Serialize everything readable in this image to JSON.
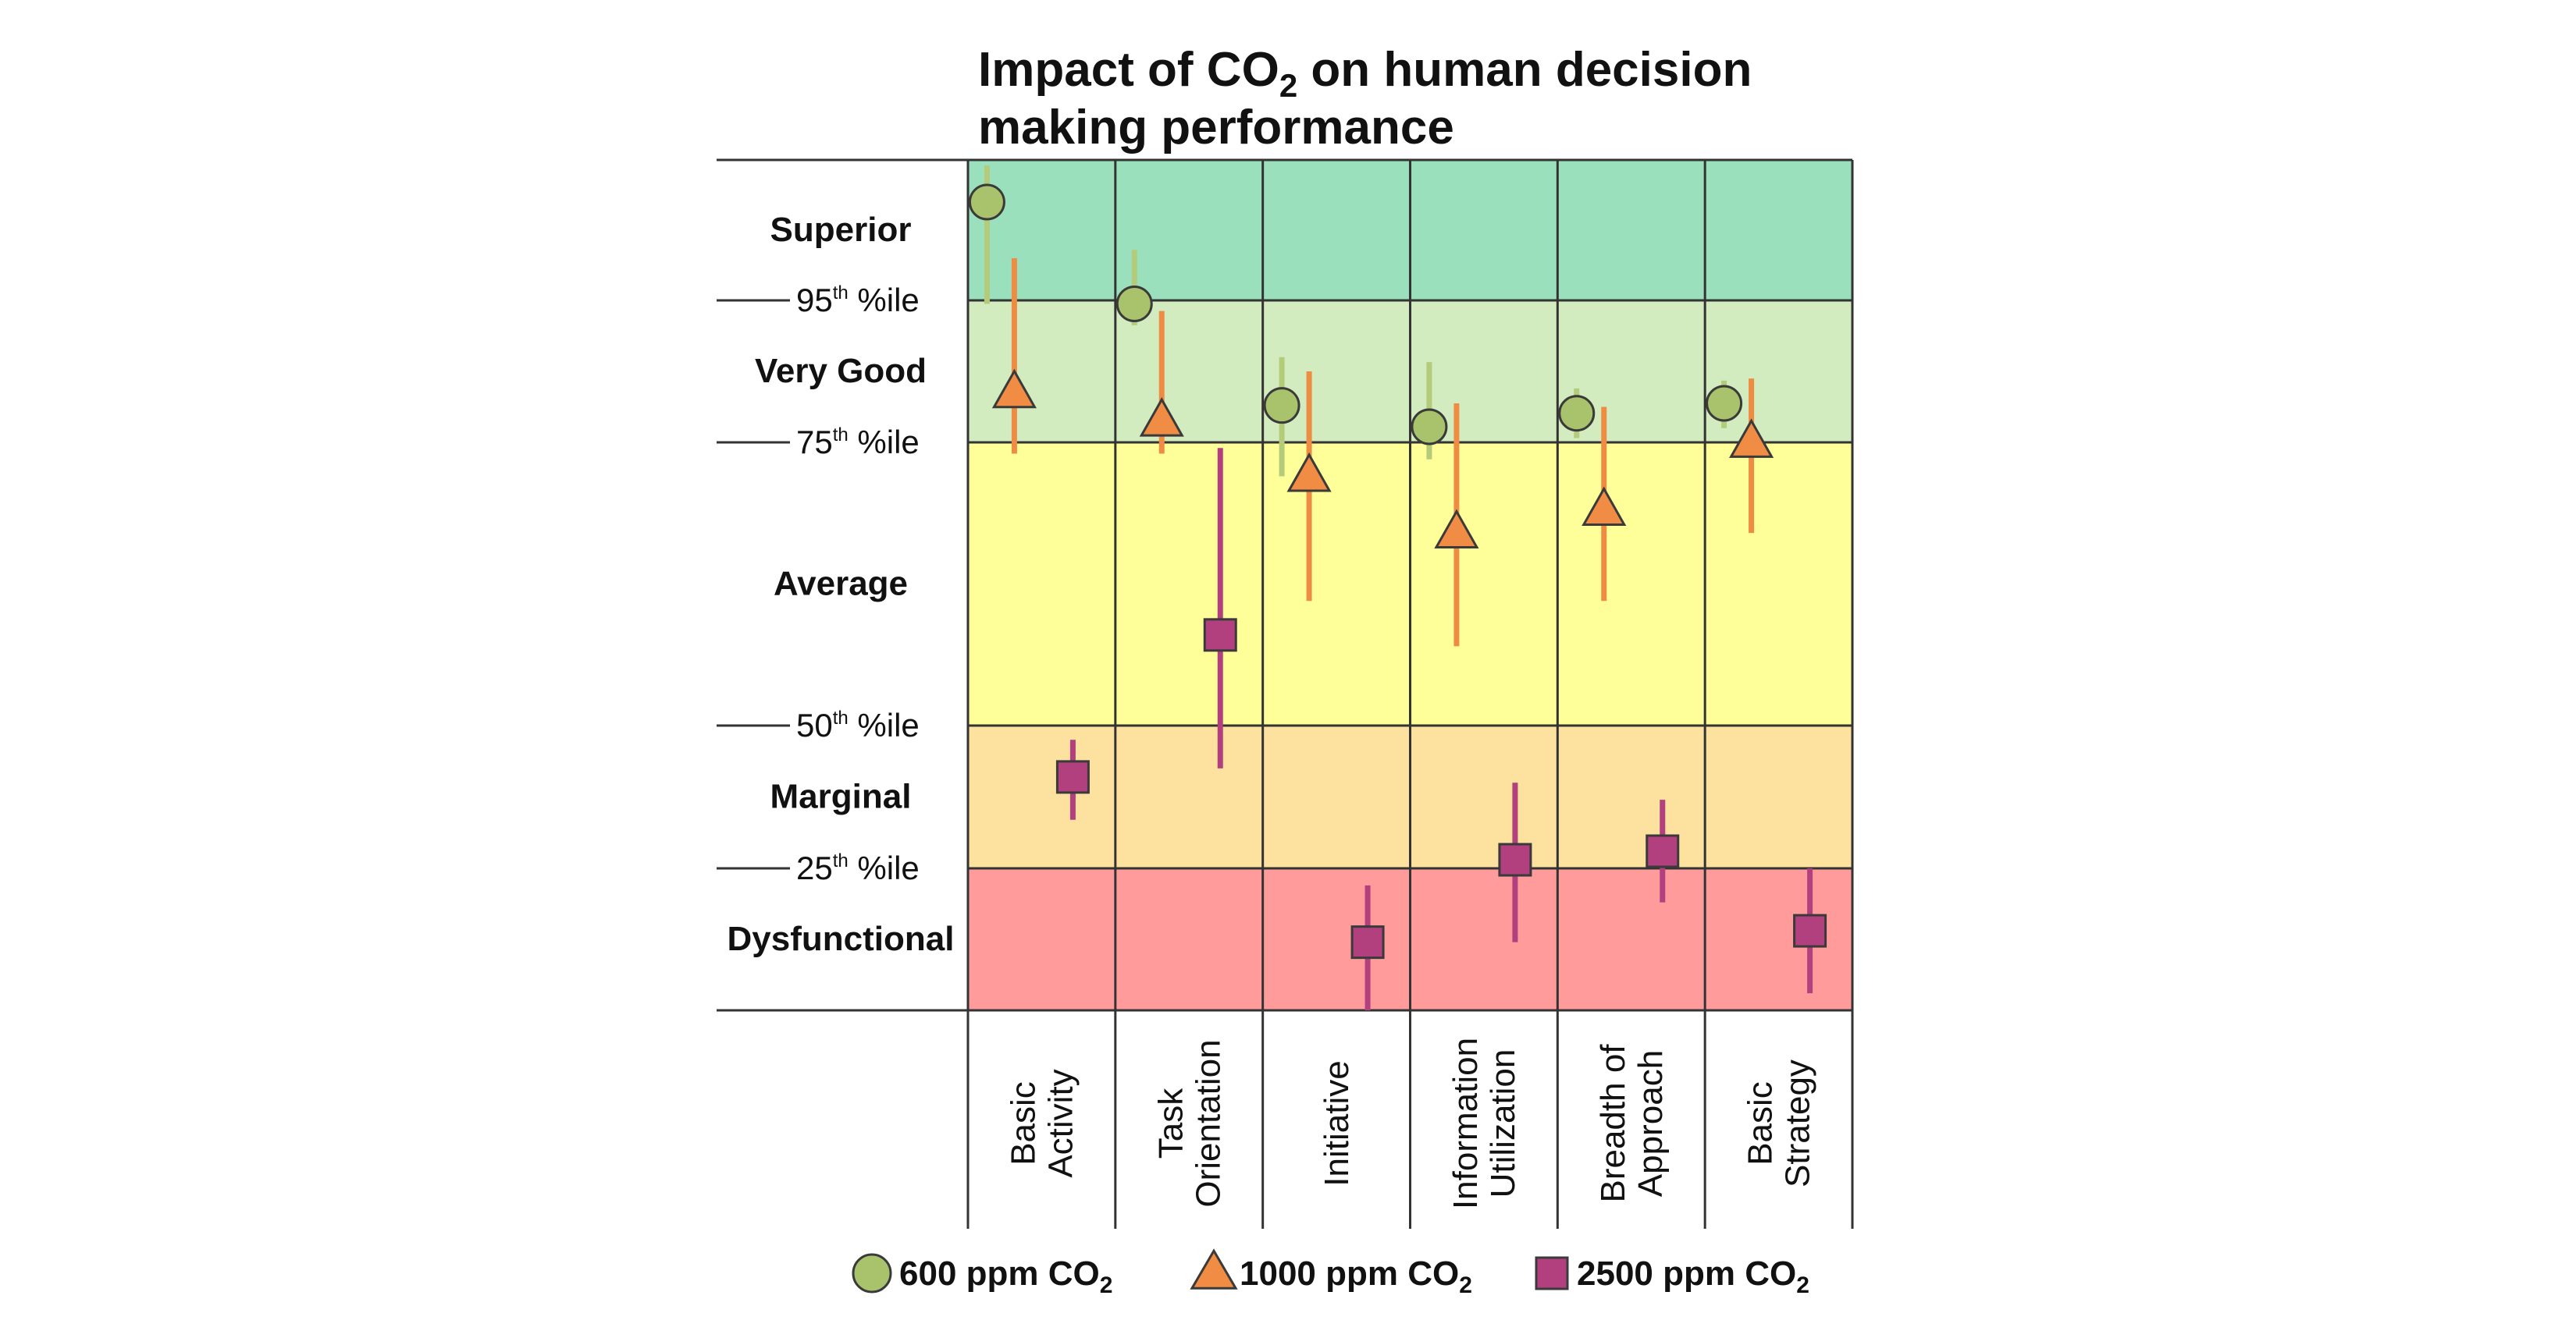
{
  "colors": {
    "superior": "#9be0bc",
    "very_good": "#d3ecbf",
    "average": "#ffff99",
    "marginal": "#fde29f",
    "dysfunctional": "#ff9b9b",
    "s600_marker": "#a8c36b",
    "s600_bar": "#b3cb7a",
    "s1000_marker": "#f08c43",
    "s1000_bar": "#ef8c44",
    "s2500_marker": "#b2407f",
    "s2500_bar": "#b2407f",
    "grid": "#333333"
  },
  "chart_data": {
    "type": "scatter",
    "title": {
      "main_1": "Impact of CO",
      "sub": "2",
      "main_2": " on human decision",
      "line2": "making performance"
    },
    "ylabel": "",
    "xlabel": "",
    "ylim": [
      0,
      100
    ],
    "y_axis": "percentile, piecewise: 0–25 Dysfunctional, 25–50 Marginal, 50–75 Average, 75–95 Very Good, 95–100 Superior",
    "grid": true,
    "legend_position": "bottom",
    "bands": [
      {
        "name": "Superior",
        "from": 95,
        "to": 100,
        "color_key": "superior"
      },
      {
        "name": "Very Good",
        "from": 75,
        "to": 95,
        "color_key": "very_good"
      },
      {
        "name": "Average",
        "from": 50,
        "to": 75,
        "color_key": "average"
      },
      {
        "name": "Marginal",
        "from": 25,
        "to": 50,
        "color_key": "marginal"
      },
      {
        "name": "Dysfunctional",
        "from": 0,
        "to": 25,
        "color_key": "dysfunctional"
      }
    ],
    "threshold_labels": [
      {
        "value": 95,
        "num": "95",
        "sup": "th",
        "suffix": " %ile"
      },
      {
        "value": 75,
        "num": "75",
        "sup": "th",
        "suffix": " %ile"
      },
      {
        "value": 50,
        "num": "50",
        "sup": "th",
        "suffix": " %ile"
      },
      {
        "value": 25,
        "num": "25",
        "sup": "th",
        "suffix": " %ile"
      }
    ],
    "categories": [
      [
        "Basic",
        "Activity"
      ],
      [
        "Task",
        "Orientation"
      ],
      [
        "Initiative"
      ],
      [
        "Information",
        "Utilization"
      ],
      [
        "Breadth of",
        "Approach"
      ],
      [
        "Basic",
        "Strategy"
      ]
    ],
    "series": [
      {
        "name": "600 ppm CO",
        "sub": "2",
        "marker": "circle",
        "color_key": "s600_marker",
        "bar_color_key": "s600_bar",
        "values": [
          98.5,
          94.5,
          80.2,
          77.2,
          79.1,
          80.5
        ],
        "low": [
          94.5,
          91.5,
          72.0,
          73.5,
          75.6,
          77.0
        ],
        "high": [
          99.8,
          96.8,
          87.0,
          86.3,
          82.6,
          83.7
        ]
      },
      {
        "name": "1000 ppm CO",
        "sub": "2",
        "marker": "triangle",
        "color_key": "s1000_marker",
        "bar_color_key": "s1000_bar",
        "values": [
          82.0,
          78.0,
          72.0,
          67.0,
          69.0,
          75.0
        ],
        "low": [
          74.0,
          74.0,
          61.0,
          57.0,
          61.0,
          67.0
        ],
        "high": [
          96.5,
          93.5,
          85.0,
          80.5,
          80.0,
          84.0
        ]
      },
      {
        "name": "2500 ppm CO",
        "sub": "2",
        "marker": "square",
        "color_key": "s2500_marker",
        "bar_color_key": "s2500_bar",
        "values": [
          41.0,
          58.0,
          12.0,
          26.5,
          28.0,
          14.0
        ],
        "low": [
          33.5,
          42.5,
          0.0,
          12.0,
          19.0,
          3.0
        ],
        "high": [
          47.5,
          74.5,
          22.0,
          40.0,
          37.0,
          25.0
        ]
      }
    ]
  }
}
